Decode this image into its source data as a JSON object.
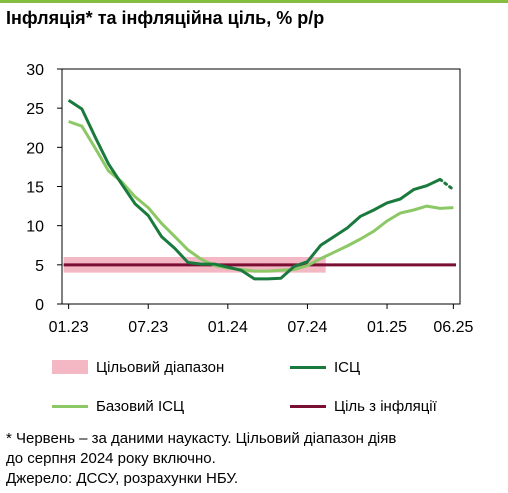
{
  "title": "Інфляція* та інфляційна ціль, % р/р",
  "colors": {
    "accent_line": "#84bd3f",
    "target_range": "#f4b8c4",
    "cpi": "#1a7a3e",
    "core_cpi": "#8cc865",
    "target": "#7a0e33"
  },
  "chart_data": {
    "type": "line",
    "x_tick_labels": [
      "01.23",
      "07.23",
      "01.24",
      "07.24",
      "01.25",
      "06.25"
    ],
    "x": [
      "01.23",
      "02.23",
      "03.23",
      "04.23",
      "05.23",
      "06.23",
      "07.23",
      "08.23",
      "09.23",
      "10.23",
      "11.23",
      "12.23",
      "01.24",
      "02.24",
      "03.24",
      "04.24",
      "05.24",
      "06.24",
      "07.24",
      "08.24",
      "09.24",
      "10.24",
      "11.24",
      "12.24",
      "01.25",
      "02.25",
      "03.25",
      "04.25",
      "05.25",
      "06.25"
    ],
    "y_ticks": [
      0,
      5,
      10,
      15,
      20,
      25,
      30
    ],
    "ylim": [
      0,
      30
    ],
    "grid": false,
    "series": [
      {
        "name": "ІСЦ",
        "color": "#1a7a3e",
        "values": [
          26.0,
          24.9,
          21.3,
          17.9,
          15.3,
          12.8,
          11.3,
          8.6,
          7.1,
          5.3,
          5.1,
          5.1,
          4.7,
          4.3,
          3.2,
          3.2,
          3.3,
          4.8,
          5.4,
          7.5,
          8.6,
          9.7,
          11.2,
          12.0,
          12.9,
          13.4,
          14.6,
          15.1,
          15.9,
          null
        ],
        "forecast": [
          null,
          null,
          null,
          null,
          null,
          null,
          null,
          null,
          null,
          null,
          null,
          null,
          null,
          null,
          null,
          null,
          null,
          null,
          null,
          null,
          null,
          null,
          null,
          null,
          null,
          null,
          null,
          null,
          15.9,
          14.6
        ]
      },
      {
        "name": "Базовий ІСЦ",
        "color": "#8cc865",
        "values": [
          23.3,
          22.7,
          19.9,
          17.0,
          15.6,
          13.7,
          12.3,
          10.3,
          8.6,
          6.9,
          5.7,
          4.9,
          4.6,
          4.4,
          4.2,
          4.2,
          4.3,
          4.4,
          4.9,
          5.8,
          6.6,
          7.4,
          8.3,
          9.3,
          10.6,
          11.6,
          12.0,
          12.5,
          12.2,
          12.3
        ]
      },
      {
        "name": "Ціль з інфляції",
        "color": "#7a0e33",
        "value": 5
      }
    ],
    "target_range": {
      "name": "Цільовий діапазон",
      "from": 4,
      "to": 6,
      "start": "01.23",
      "end": "08.24"
    }
  },
  "legend": [
    {
      "label": "Цільовий діапазон"
    },
    {
      "label": "ІСЦ"
    },
    {
      "label": "Базовий ІСЦ"
    },
    {
      "label": "Ціль з інфляції"
    }
  ],
  "notes": [
    "* Червень – за даними наукасту. Цільовий діапазон діяв",
    "до серпня 2024 року включно.",
    "Джерело: ДССУ, розрахунки НБУ."
  ]
}
